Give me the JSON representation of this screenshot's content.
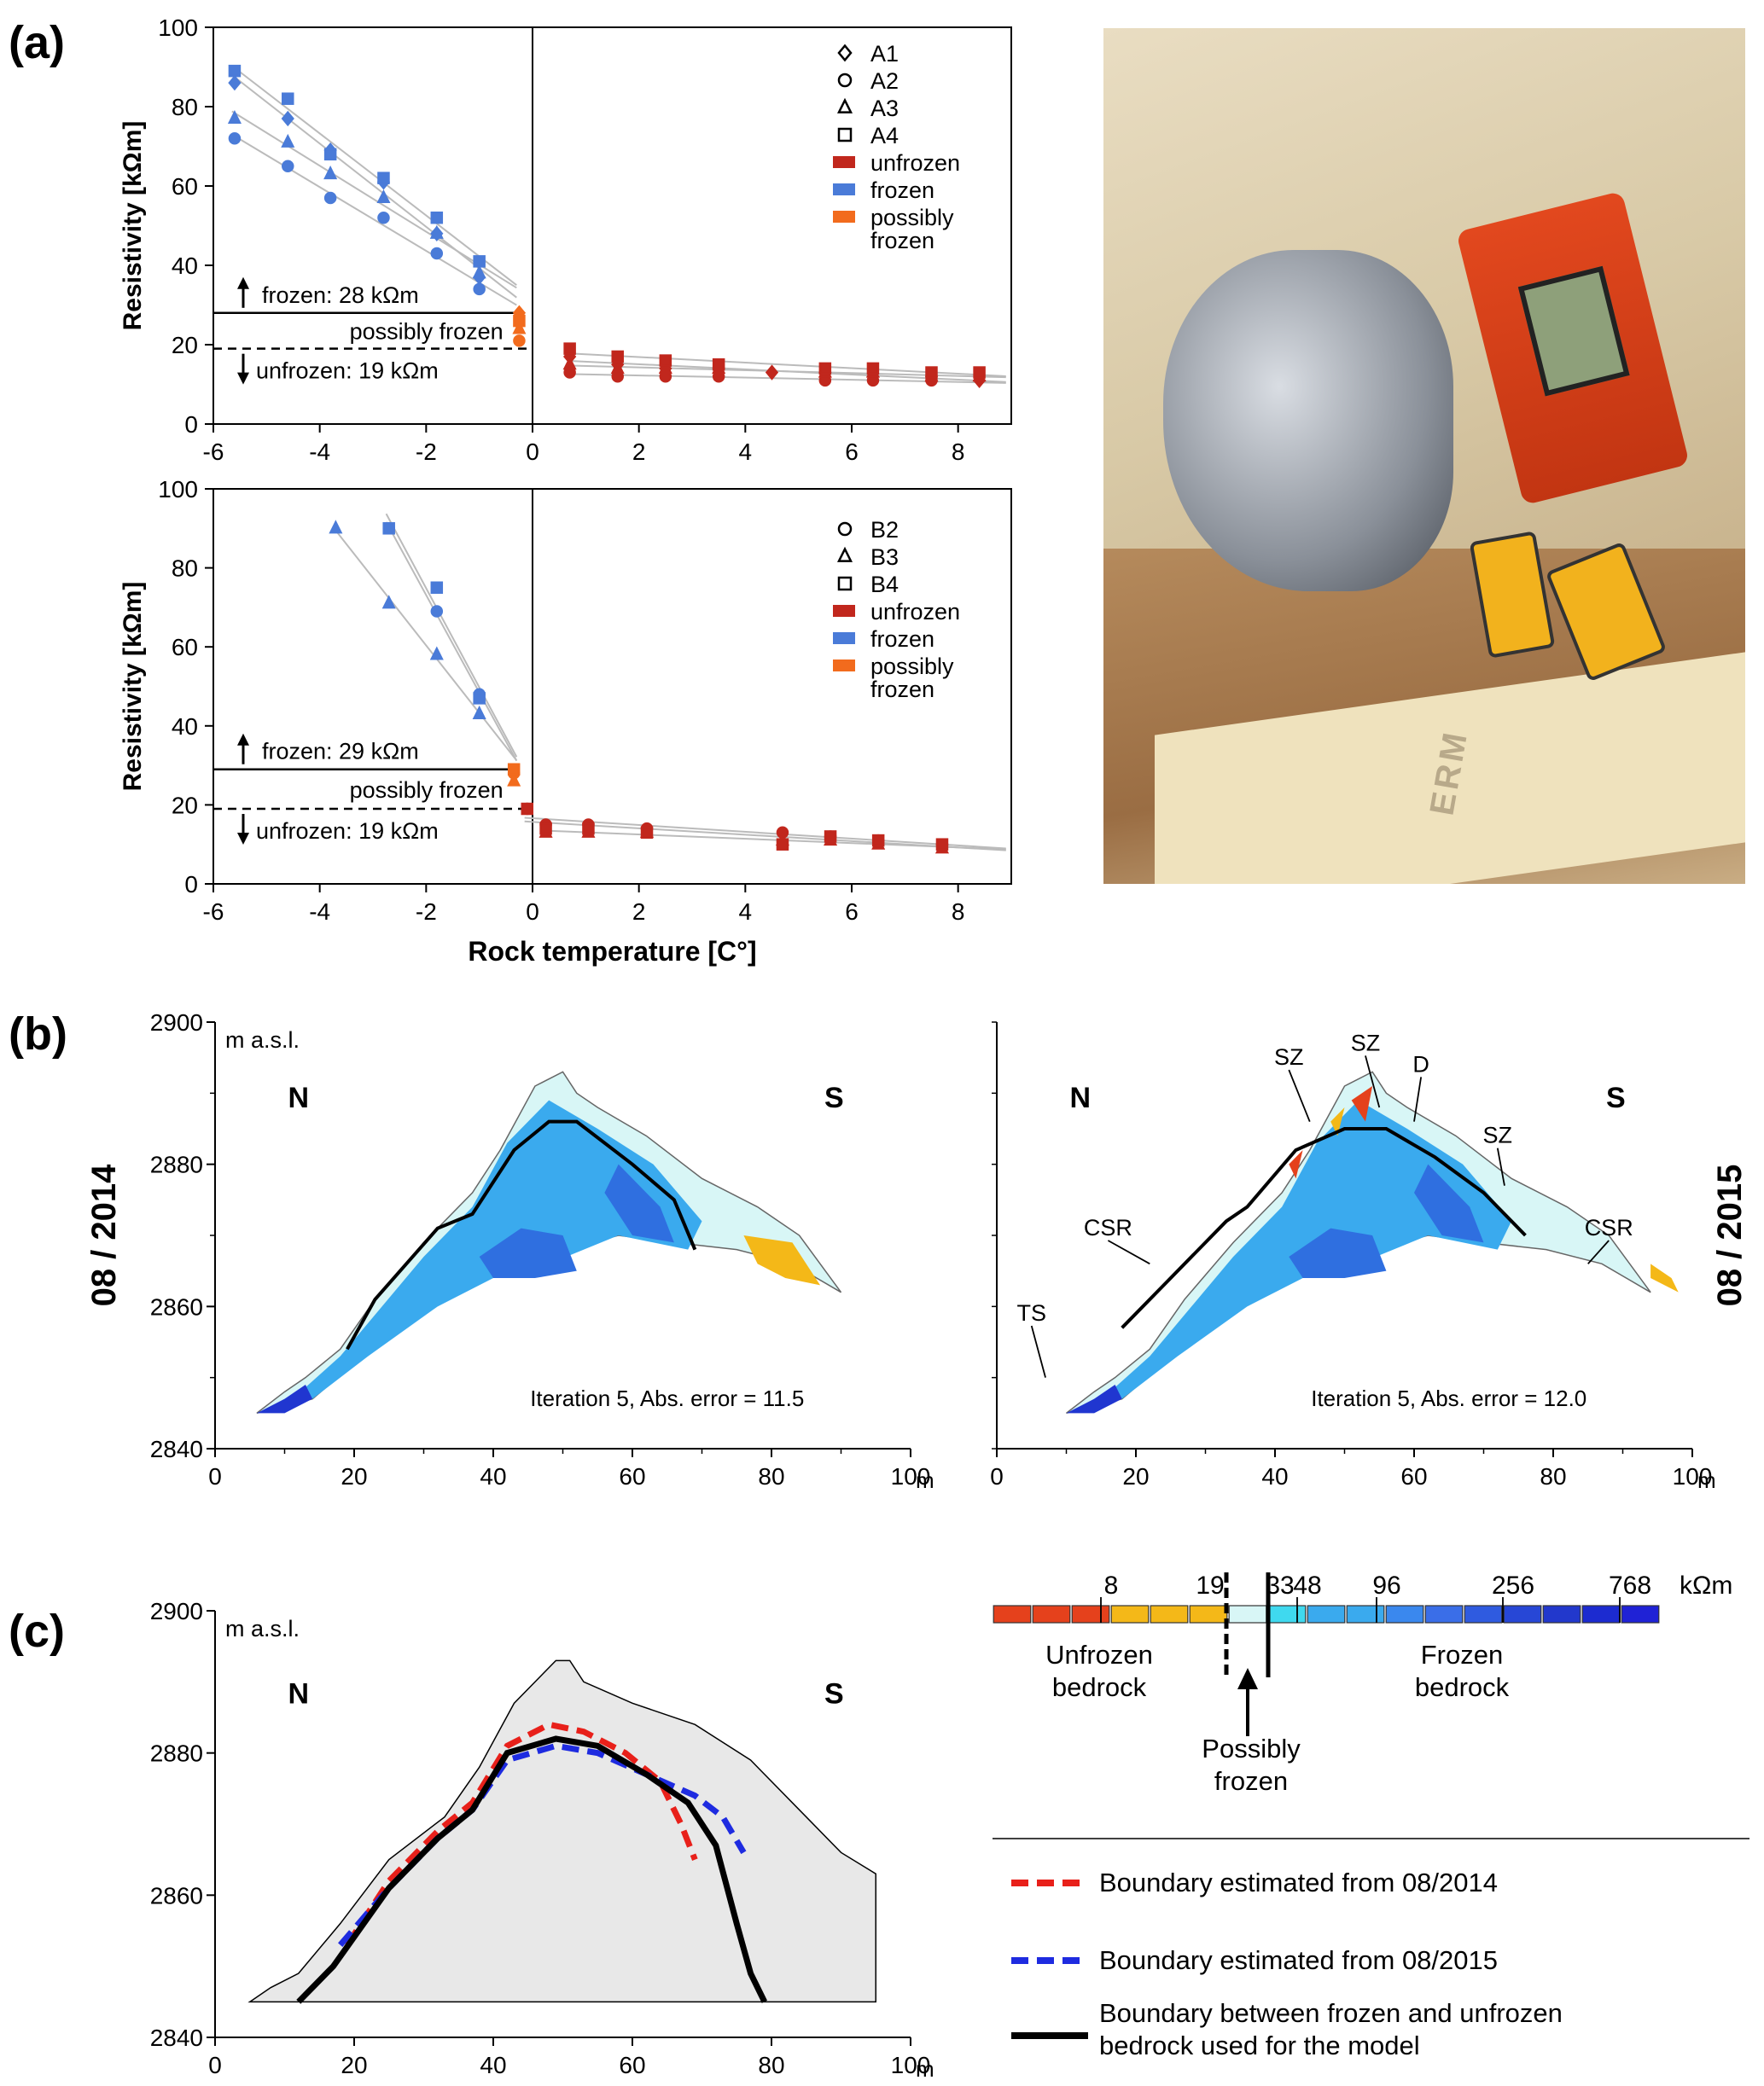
{
  "panel_labels": {
    "a": "(a)",
    "b": "(b)",
    "c": "(c)"
  },
  "chart_data": [
    {
      "type": "scatter",
      "panel": "(a) top",
      "ylabel": "Resistivity [kΩm]",
      "xlabel": "",
      "xlim": [
        -6,
        9
      ],
      "ylim": [
        0,
        100
      ],
      "x_ticks": [
        "-6",
        "-4",
        "-2",
        "0",
        "2",
        "4",
        "6",
        "8"
      ],
      "y_ticks": [
        "0",
        "20",
        "40",
        "60",
        "80",
        "100"
      ],
      "legend": [
        "A1",
        "A2",
        "A3",
        "A4",
        "unfrozen",
        "frozen",
        "possibly",
        "frozen"
      ],
      "annotations": {
        "frozen": "frozen: 28 kΩm",
        "possibly": "possibly frozen",
        "unfrozen": "unfrozen: 19 kΩm"
      },
      "thresholds": {
        "frozen": 28,
        "unfrozen": 19
      },
      "series": [
        {
          "name": "A1",
          "marker": "diamond",
          "frozen": [
            [
              -5.6,
              86
            ],
            [
              -4.6,
              77
            ],
            [
              -3.8,
              69
            ],
            [
              -2.8,
              61
            ],
            [
              -1.8,
              48
            ],
            [
              -1,
              37
            ]
          ],
          "possibly": [
            [
              -0.25,
              28
            ]
          ],
          "unfrozen": [
            [
              0.7,
              17
            ],
            [
              1.6,
              15
            ],
            [
              2.5,
              14
            ],
            [
              3.5,
              14
            ],
            [
              4.5,
              13
            ],
            [
              5.5,
              13
            ],
            [
              6.4,
              12
            ],
            [
              7.5,
              12
            ],
            [
              8.4,
              11
            ]
          ]
        },
        {
          "name": "A2",
          "marker": "circle",
          "frozen": [
            [
              -5.6,
              72
            ],
            [
              -4.6,
              65
            ],
            [
              -3.8,
              57
            ],
            [
              -2.8,
              52
            ],
            [
              -1.8,
              43
            ],
            [
              -1,
              34
            ]
          ],
          "possibly": [
            [
              -0.25,
              21
            ]
          ],
          "unfrozen": [
            [
              0.7,
              13
            ],
            [
              1.6,
              12
            ],
            [
              2.5,
              12
            ],
            [
              3.5,
              12
            ],
            [
              5.5,
              11
            ],
            [
              6.4,
              11
            ],
            [
              7.5,
              11
            ]
          ]
        },
        {
          "name": "A3",
          "marker": "triangle",
          "frozen": [
            [
              -5.6,
              77
            ],
            [
              -4.6,
              71
            ],
            [
              -3.8,
              63
            ],
            [
              -2.8,
              57
            ],
            [
              -1.8,
              48
            ],
            [
              -1,
              38
            ]
          ],
          "possibly": [
            [
              -0.25,
              24
            ]
          ],
          "unfrozen": [
            [
              0.7,
              15
            ],
            [
              1.6,
              14
            ],
            [
              2.5,
              14
            ],
            [
              3.5,
              14
            ],
            [
              5.5,
              13
            ],
            [
              6.4,
              13
            ],
            [
              7.5,
              12
            ],
            [
              8.4,
              12
            ]
          ]
        },
        {
          "name": "A4",
          "marker": "square",
          "frozen": [
            [
              -5.6,
              89
            ],
            [
              -4.6,
              82
            ],
            [
              -3.8,
              68
            ],
            [
              -2.8,
              62
            ],
            [
              -1.8,
              52
            ],
            [
              -1,
              41
            ]
          ],
          "possibly": [
            [
              -0.25,
              26
            ]
          ],
          "unfrozen": [
            [
              0.7,
              19
            ],
            [
              1.6,
              17
            ],
            [
              2.5,
              16
            ],
            [
              3.5,
              15
            ],
            [
              5.5,
              14
            ],
            [
              6.4,
              14
            ],
            [
              7.5,
              13
            ],
            [
              8.4,
              13
            ]
          ]
        }
      ]
    },
    {
      "type": "scatter",
      "panel": "(a) bottom",
      "ylabel": "Resistivity [kΩm]",
      "xlabel": "Rock temperature [C°]",
      "xlim": [
        -6,
        9
      ],
      "ylim": [
        0,
        100
      ],
      "x_ticks": [
        "-6",
        "-4",
        "-2",
        "0",
        "2",
        "4",
        "6",
        "8"
      ],
      "y_ticks": [
        "0",
        "20",
        "40",
        "60",
        "80",
        "100"
      ],
      "legend": [
        "B2",
        "B3",
        "B4",
        "unfrozen",
        "frozen",
        "possibly",
        "frozen"
      ],
      "annotations": {
        "frozen": "frozen: 29 kΩm",
        "possibly": "possibly frozen",
        "unfrozen": "unfrozen: 19 kΩm"
      },
      "thresholds": {
        "frozen": 29,
        "unfrozen": 19
      },
      "series": [
        {
          "name": "B2",
          "marker": "circle",
          "frozen": [
            [
              -2.7,
              90
            ],
            [
              -1.8,
              69
            ],
            [
              -1,
              48
            ]
          ],
          "possibly": [
            [
              -0.35,
              28
            ]
          ],
          "unfrozen": [
            [
              -0.1,
              19
            ],
            [
              0.25,
              15
            ],
            [
              1.05,
              15
            ],
            [
              2.15,
              14
            ],
            [
              4.7,
              13
            ],
            [
              5.6,
              12
            ],
            [
              6.5,
              11
            ],
            [
              7.7,
              10
            ]
          ]
        },
        {
          "name": "B3",
          "marker": "triangle",
          "frozen": [
            [
              -3.7,
              90
            ],
            [
              -2.7,
              71
            ],
            [
              -1.8,
              58
            ],
            [
              -1,
              43
            ]
          ],
          "possibly": [
            [
              -0.35,
              26
            ]
          ],
          "unfrozen": [
            [
              0.25,
              13
            ],
            [
              1.05,
              13
            ],
            [
              2.15,
              13
            ],
            [
              4.7,
              11
            ],
            [
              5.6,
              11
            ],
            [
              6.5,
              10
            ],
            [
              7.7,
              9
            ]
          ]
        },
        {
          "name": "B4",
          "marker": "square",
          "frozen": [
            [
              -2.7,
              90
            ],
            [
              -1.8,
              75
            ],
            [
              -1,
              47
            ]
          ],
          "possibly": [
            [
              -0.35,
              29
            ]
          ],
          "unfrozen": [
            [
              -0.1,
              19
            ],
            [
              0.25,
              14
            ],
            [
              1.05,
              14
            ],
            [
              2.15,
              13
            ],
            [
              4.7,
              10
            ],
            [
              5.6,
              12
            ],
            [
              6.5,
              11
            ],
            [
              7.7,
              10
            ]
          ]
        }
      ]
    },
    {
      "type": "area",
      "panel": "(b) left",
      "ylabel": "m a.s.l.",
      "xlabel": "m",
      "xlim": [
        0,
        100
      ],
      "ylim": [
        2840,
        2900
      ],
      "x_ticks": [
        "0",
        "20",
        "40",
        "60",
        "80",
        "100"
      ],
      "y_ticks": [
        "2840",
        "2860",
        "2880",
        "2900"
      ],
      "side_label": "08 / 2014",
      "direction_labels": [
        "N",
        "S"
      ],
      "note": "Iteration 5, Abs. error = 11.5",
      "boundary": {
        "x": [
          19,
          23,
          32,
          37,
          43,
          48,
          52,
          60,
          66,
          69
        ],
        "y": [
          2854,
          2861,
          2871,
          2873,
          2882,
          2886,
          2886,
          2880,
          2875,
          2868
        ]
      }
    },
    {
      "type": "area",
      "panel": "(b) right",
      "ylabel": "",
      "xlabel": "m",
      "xlim": [
        0,
        100
      ],
      "ylim": [
        2840,
        2900
      ],
      "x_ticks": [
        "0",
        "20",
        "40",
        "60",
        "80",
        "100"
      ],
      "y_ticks": [],
      "side_label": "08 / 2015",
      "direction_labels": [
        "N",
        "S"
      ],
      "note": "Iteration 5, Abs. error = 12.0",
      "feature_labels": [
        "SZ",
        "SZ",
        "D",
        "SZ",
        "CSR",
        "CSR",
        "TS"
      ],
      "boundary": {
        "x": [
          18,
          25,
          33,
          36,
          43,
          50,
          56,
          63,
          70,
          76
        ],
        "y": [
          2857,
          2864,
          2872,
          2874,
          2882,
          2885,
          2885,
          2881,
          2876,
          2870
        ]
      }
    },
    {
      "type": "line",
      "panel": "(c)",
      "ylabel": "m a.s.l.",
      "xlabel": "m",
      "xlim": [
        0,
        100
      ],
      "ylim": [
        2840,
        2900
      ],
      "x_ticks": [
        "0",
        "20",
        "40",
        "60",
        "80",
        "100"
      ],
      "y_ticks": [
        "2840",
        "2860",
        "2880",
        "2900"
      ],
      "direction_labels": [
        "N",
        "S"
      ],
      "series": [
        {
          "name": "Boundary estimated from 08/2014",
          "color": "#e8201a",
          "dashed": true,
          "x": [
            19,
            25,
            32,
            37,
            42,
            48,
            53,
            59,
            64,
            67,
            69
          ],
          "y": [
            2853,
            2862,
            2869,
            2873,
            2881,
            2884,
            2883,
            2880,
            2876,
            2870,
            2865
          ]
        },
        {
          "name": "Boundary estimated from 08/2015",
          "color": "#1e2be0",
          "dashed": true,
          "x": [
            18,
            25,
            32,
            37,
            42,
            49,
            55,
            62,
            69,
            73,
            76
          ],
          "y": [
            2853,
            2861,
            2868,
            2872,
            2879,
            2881,
            2880,
            2877,
            2874,
            2871,
            2866
          ]
        },
        {
          "name": "Boundary between frozen and unfrozen bedrock used for the model",
          "color": "#000000",
          "dashed": false,
          "x": [
            12,
            17,
            25,
            32,
            37,
            42,
            49,
            55,
            62,
            68,
            72,
            75,
            77,
            79
          ],
          "y": [
            2845,
            2850,
            2861,
            2868,
            2872,
            2880,
            2882,
            2881,
            2877,
            2873,
            2867,
            2856,
            2849,
            2845
          ]
        }
      ]
    }
  ],
  "colorscale": {
    "ticks": [
      "8",
      "19",
      "33",
      "48",
      "96",
      "256",
      "768"
    ],
    "unit": "kΩm",
    "colors": [
      "#e5411c",
      "#e5411c",
      "#e5411c",
      "#f4b818",
      "#f4b818",
      "#f4b818",
      "#d8f6f6",
      "#3fd9ef",
      "#3aaaee",
      "#3aaaee",
      "#3a88ee",
      "#3a6ee8",
      "#2f5be0",
      "#2747d6",
      "#2238cc",
      "#1c2bd0",
      "#1f22d6"
    ],
    "labels": {
      "unfrozen": "Unfrozen\nbedrock",
      "frozen": "Frozen\nbedrock",
      "possibly": "Possibly\nfrozen"
    }
  },
  "legend_c": [
    "Boundary estimated from 08/2014",
    "Boundary estimated from 08/2015",
    "Boundary between frozen and unfrozen",
    "bedrock used for the model"
  ],
  "photo": {
    "printed_text": "ERM"
  }
}
